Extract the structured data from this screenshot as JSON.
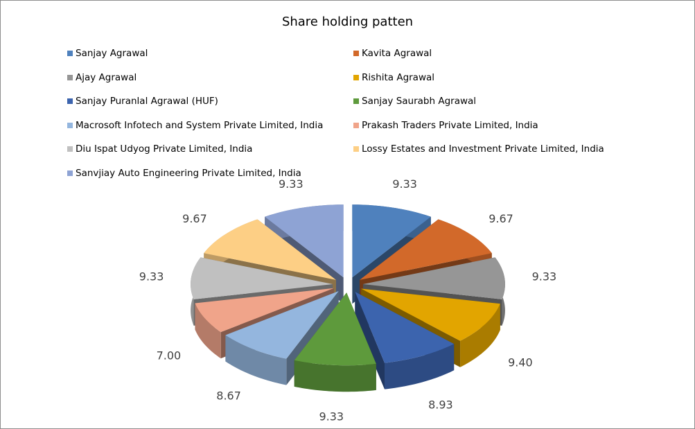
{
  "chart_data": {
    "type": "pie",
    "style": "3d-exploded",
    "title": "Share holding patten",
    "legend_position": "top",
    "categories": [
      "Sanjay Agrawal",
      "Kavita Agrawal",
      "Ajay Agrawal",
      "Rishita Agrawal",
      "Sanjay Puranlal Agrawal (HUF)",
      "Sanjay Saurabh Agrawal",
      "Macrosoft Infotech and System  Private Limited, India",
      "Prakash Traders Private Limited, India",
      "Diu Ispat Udyog Private Limited, India",
      "Lossy Estates and Investment  Private Limited, India",
      "Sanvjiay Auto Engineering Private Limited, India"
    ],
    "values": [
      9.33,
      9.67,
      9.33,
      9.4,
      8.93,
      9.33,
      8.67,
      7.0,
      9.33,
      9.67,
      9.33
    ],
    "data_labels": [
      "9.33",
      "9.67",
      "9.33",
      "9.40",
      "8.93",
      "9.33",
      "8.67",
      "7.00",
      "9.33",
      "9.67",
      "9.33"
    ],
    "colors": [
      "#4f81bd",
      "#d2692a",
      "#969696",
      "#e2a500",
      "#3c64ae",
      "#5e9a3c",
      "#94b6de",
      "#f0a48a",
      "#c0c0c0",
      "#fdcf85",
      "#8ea3d4"
    ]
  }
}
